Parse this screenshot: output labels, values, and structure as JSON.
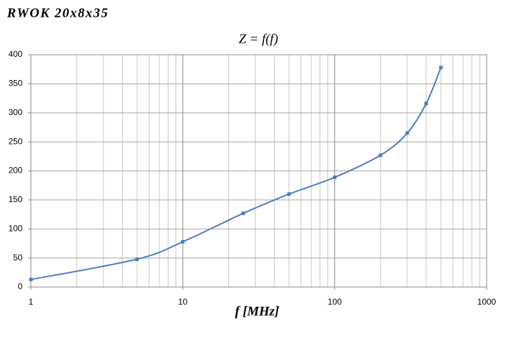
{
  "header": {
    "title": "RWOK 20x8x35"
  },
  "chart_data": {
    "type": "line",
    "title": "Z = f(f)",
    "x_label": "f [MHz]",
    "x": [
      1,
      5,
      10,
      25,
      50,
      100,
      200,
      300,
      400,
      500
    ],
    "series": [
      {
        "name": "Z",
        "color": "#4a7ebb",
        "values": [
          13,
          48,
          78,
          127,
          160,
          189,
          227,
          265,
          316,
          378
        ]
      }
    ],
    "xlim": [
      1,
      1000
    ],
    "xticks": [
      1,
      10,
      100,
      1000
    ],
    "x_log": true,
    "ylim": [
      0,
      400
    ],
    "yticks": [
      0,
      50,
      100,
      150,
      200,
      250,
      300,
      350,
      400
    ],
    "grid": true,
    "smooth": true,
    "markers": true
  }
}
